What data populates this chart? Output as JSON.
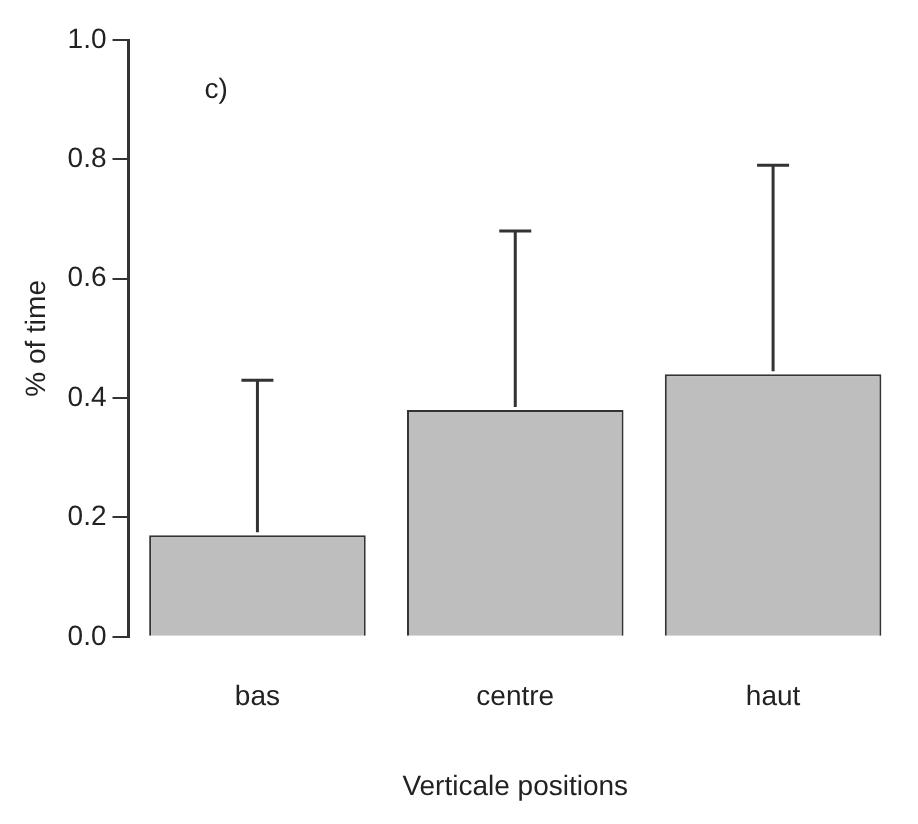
{
  "chart_data": {
    "type": "bar",
    "xlabel": "Verticale positions",
    "ylabel": "% of time",
    "categories": [
      "bas",
      "centre",
      "haut"
    ],
    "series": [
      {
        "color": "#bebebe",
        "values": [
          0.17,
          0.38,
          0.44
        ],
        "errors": [
          [
            0.17,
            0.43
          ],
          [
            0.38,
            0.68
          ],
          [
            0.44,
            0.79
          ]
        ]
      }
    ],
    "ylim": [
      0,
      1
    ],
    "yticks": [
      {
        "value": 0,
        "label": "0.0"
      },
      {
        "value": 0.2,
        "label": "0.2"
      },
      {
        "value": 0.4,
        "label": "0.4"
      },
      {
        "value": 0.6,
        "label": "0.6"
      },
      {
        "value": 0.8,
        "label": "0.8"
      },
      {
        "value": 1,
        "label": "1.0"
      }
    ],
    "annotations": [
      "c)"
    ],
    "grid": false,
    "legend": false
  }
}
